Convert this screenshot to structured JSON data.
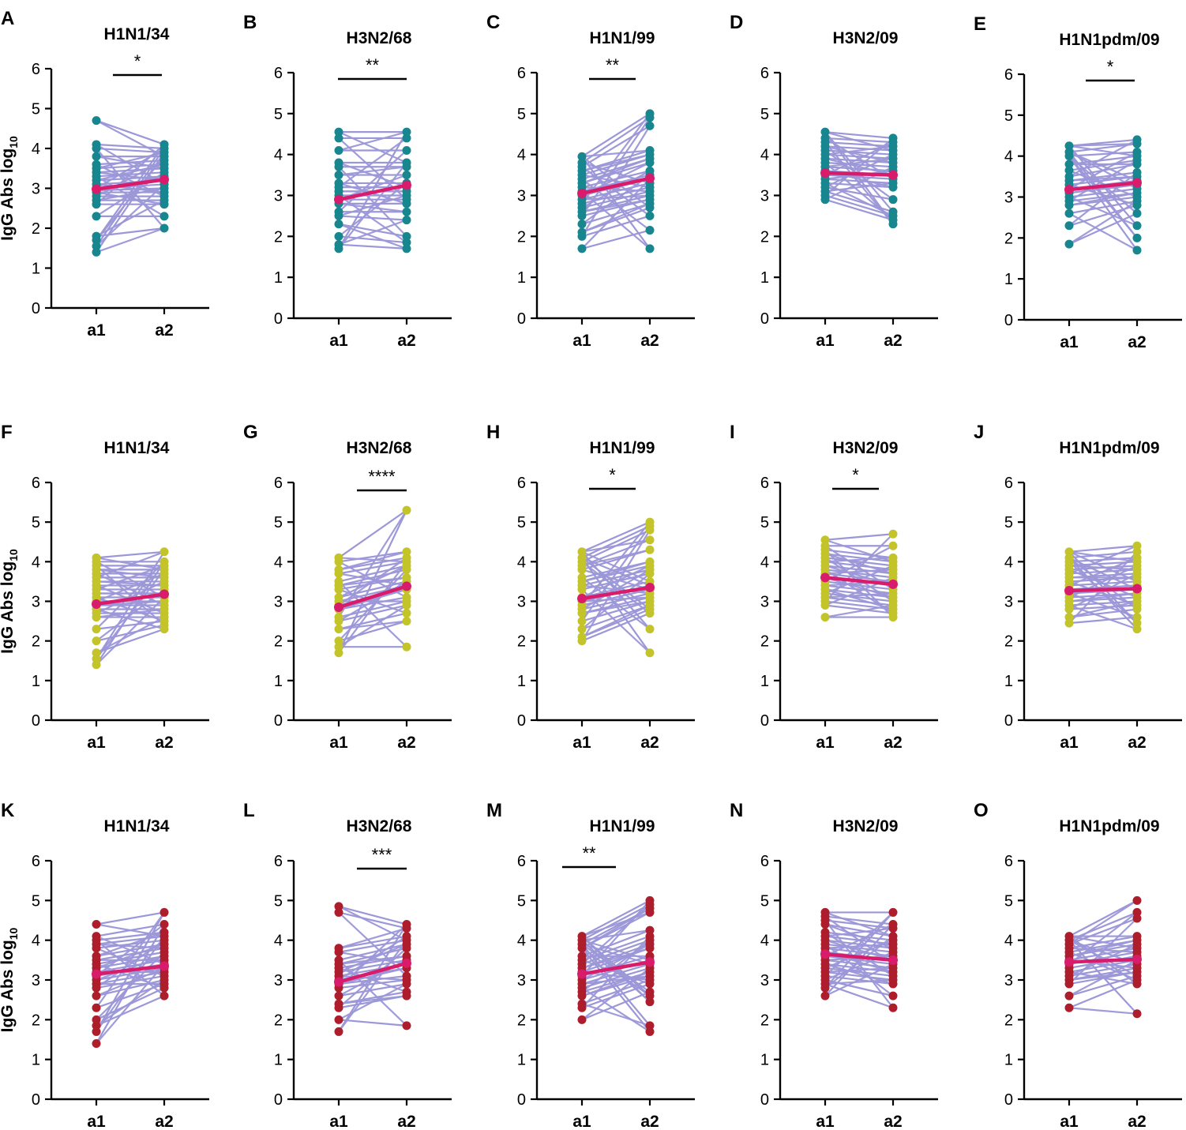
{
  "figure": {
    "ylabel_main": "IgG Abs log",
    "ylabel_sub": "10",
    "x_categories": [
      "a1",
      "a2"
    ],
    "y_ticks": [
      "0",
      "1",
      "2",
      "3",
      "4",
      "5",
      "6"
    ],
    "ylim": [
      0,
      6
    ]
  },
  "colors": {
    "line": "#9b97d8",
    "mean": "#d81b6a",
    "row_dots": [
      "#17868f",
      "#c3c32a",
      "#ad1d2c"
    ]
  },
  "chart_data": [
    {
      "label": "A",
      "title": "H1N1/34",
      "type": "line",
      "sig": "*",
      "mean": [
        2.98,
        3.22
      ],
      "a1": [
        4.7,
        4.1,
        4.0,
        3.8,
        3.6,
        3.5,
        3.4,
        3.3,
        3.2,
        3.1,
        3.0,
        2.95,
        2.9,
        2.8,
        2.7,
        2.6,
        2.3,
        1.8,
        1.7,
        1.55,
        1.4
      ],
      "a2": [
        4.1,
        4.0,
        3.9,
        3.8,
        3.7,
        3.6,
        3.5,
        3.4,
        3.3,
        3.2,
        3.1,
        3.0,
        2.9,
        2.8,
        2.7,
        2.6,
        2.3,
        2.0
      ]
    },
    {
      "label": "B",
      "title": "H3N2/68",
      "type": "line",
      "sig": "**",
      "mean": [
        2.9,
        3.25
      ],
      "a1": [
        4.55,
        4.4,
        4.1,
        3.8,
        3.7,
        3.5,
        3.3,
        3.2,
        3.1,
        3.0,
        2.9,
        2.8,
        2.6,
        2.5,
        2.3,
        2.0,
        1.8,
        1.7
      ],
      "a2": [
        4.55,
        4.4,
        4.1,
        3.8,
        3.7,
        3.5,
        3.3,
        3.2,
        3.1,
        3.0,
        2.9,
        2.8,
        2.6,
        2.4,
        2.0,
        1.85,
        1.7
      ]
    },
    {
      "label": "C",
      "title": "H1N1/99",
      "type": "line",
      "sig": "**",
      "mean": [
        3.05,
        3.42
      ],
      "a1": [
        3.95,
        3.8,
        3.7,
        3.6,
        3.5,
        3.4,
        3.3,
        3.2,
        3.1,
        3.0,
        2.9,
        2.8,
        2.7,
        2.6,
        2.5,
        2.3,
        2.1,
        2.0,
        1.7
      ],
      "a2": [
        5.0,
        4.9,
        4.7,
        4.1,
        4.0,
        3.9,
        3.8,
        3.6,
        3.5,
        3.4,
        3.3,
        3.2,
        3.1,
        3.0,
        2.9,
        2.8,
        2.7,
        2.5,
        2.15,
        1.7
      ]
    },
    {
      "label": "D",
      "title": "H3N2/09",
      "type": "line",
      "sig": "",
      "mean": [
        3.55,
        3.5
      ],
      "a1": [
        4.55,
        4.4,
        4.3,
        4.2,
        4.1,
        4.0,
        3.9,
        3.8,
        3.7,
        3.6,
        3.5,
        3.4,
        3.3,
        3.2,
        3.1,
        3.0,
        2.9
      ],
      "a2": [
        4.4,
        4.3,
        4.2,
        4.1,
        4.0,
        3.9,
        3.8,
        3.7,
        3.6,
        3.5,
        3.4,
        3.3,
        3.2,
        2.9,
        2.6,
        2.5,
        2.4,
        2.3
      ]
    },
    {
      "label": "E",
      "title": "H1N1pdm/09",
      "type": "line",
      "sig": "*",
      "mean": [
        3.18,
        3.35
      ],
      "a1": [
        4.25,
        4.1,
        4.0,
        3.8,
        3.65,
        3.5,
        3.4,
        3.3,
        3.2,
        3.1,
        3.0,
        2.9,
        2.8,
        2.6,
        2.3,
        1.85
      ],
      "a2": [
        4.4,
        4.3,
        4.1,
        4.0,
        3.9,
        3.8,
        3.6,
        3.5,
        3.4,
        3.3,
        3.2,
        3.1,
        3.0,
        2.9,
        2.8,
        2.6,
        2.3,
        2.0,
        1.7
      ]
    },
    {
      "label": "F",
      "title": "H1N1/34",
      "type": "line",
      "sig": "",
      "mean": [
        2.93,
        3.18
      ],
      "a1": [
        4.1,
        4.0,
        3.9,
        3.8,
        3.7,
        3.6,
        3.5,
        3.4,
        3.3,
        3.2,
        3.1,
        3.0,
        2.9,
        2.8,
        2.7,
        2.6,
        2.3,
        2.0,
        1.7,
        1.55,
        1.4
      ],
      "a2": [
        4.25,
        4.0,
        3.9,
        3.8,
        3.7,
        3.6,
        3.5,
        3.4,
        3.3,
        3.2,
        3.1,
        3.0,
        2.9,
        2.8,
        2.7,
        2.6,
        2.5,
        2.4,
        2.3
      ]
    },
    {
      "label": "G",
      "title": "H3N2/68",
      "type": "line",
      "sig": "****",
      "mean": [
        2.85,
        3.38
      ],
      "a1": [
        4.1,
        4.0,
        3.8,
        3.7,
        3.5,
        3.4,
        3.3,
        3.1,
        3.0,
        2.9,
        2.8,
        2.6,
        2.5,
        2.3,
        2.0,
        1.85,
        1.7
      ],
      "a2": [
        5.3,
        4.25,
        4.1,
        4.0,
        3.9,
        3.8,
        3.6,
        3.5,
        3.4,
        3.3,
        3.1,
        3.0,
        2.9,
        2.7,
        2.5,
        1.85
      ]
    },
    {
      "label": "H",
      "title": "H1N1/99",
      "type": "line",
      "sig": "*",
      "mean": [
        3.07,
        3.35
      ],
      "a1": [
        4.25,
        4.1,
        4.0,
        3.9,
        3.8,
        3.6,
        3.5,
        3.4,
        3.3,
        3.1,
        3.0,
        2.9,
        2.8,
        2.7,
        2.5,
        2.3,
        2.1,
        2.0
      ],
      "a2": [
        5.0,
        4.9,
        4.8,
        4.55,
        4.3,
        4.0,
        3.9,
        3.8,
        3.7,
        3.5,
        3.4,
        3.3,
        3.2,
        3.1,
        3.0,
        2.9,
        2.8,
        2.7,
        2.3,
        1.7
      ]
    },
    {
      "label": "I",
      "title": "H3N2/09",
      "type": "line",
      "sig": "*",
      "mean": [
        3.6,
        3.43
      ],
      "a1": [
        4.55,
        4.4,
        4.3,
        4.2,
        4.1,
        4.0,
        3.9,
        3.8,
        3.7,
        3.6,
        3.5,
        3.4,
        3.3,
        3.2,
        3.1,
        3.0,
        2.9,
        2.6
      ],
      "a2": [
        4.7,
        4.4,
        4.1,
        4.0,
        3.9,
        3.8,
        3.7,
        3.6,
        3.5,
        3.4,
        3.3,
        3.2,
        3.1,
        3.0,
        2.9,
        2.8,
        2.7,
        2.6
      ]
    },
    {
      "label": "J",
      "title": "H1N1pdm/09",
      "type": "line",
      "sig": "",
      "mean": [
        3.27,
        3.32
      ],
      "a1": [
        4.25,
        4.1,
        4.0,
        3.9,
        3.8,
        3.7,
        3.6,
        3.5,
        3.4,
        3.3,
        3.2,
        3.1,
        3.0,
        2.9,
        2.8,
        2.6,
        2.45
      ],
      "a2": [
        4.4,
        4.25,
        4.1,
        4.0,
        3.9,
        3.8,
        3.7,
        3.6,
        3.5,
        3.4,
        3.3,
        3.2,
        3.1,
        3.0,
        2.9,
        2.8,
        2.6,
        2.45,
        2.3
      ]
    },
    {
      "label": "K",
      "title": "H1N1/34",
      "type": "line",
      "sig": "",
      "mean": [
        3.15,
        3.35
      ],
      "a1": [
        4.4,
        4.1,
        4.0,
        3.9,
        3.8,
        3.6,
        3.5,
        3.4,
        3.3,
        3.2,
        3.1,
        3.0,
        2.9,
        2.8,
        2.6,
        2.3,
        2.0,
        1.85,
        1.7,
        1.4
      ],
      "a2": [
        4.7,
        4.4,
        4.2,
        4.1,
        4.0,
        3.9,
        3.8,
        3.7,
        3.6,
        3.5,
        3.4,
        3.3,
        3.2,
        3.1,
        3.0,
        2.9,
        2.8,
        2.6
      ]
    },
    {
      "label": "L",
      "title": "H3N2/68",
      "type": "line",
      "sig": "***",
      "mean": [
        2.95,
        3.42
      ],
      "a1": [
        4.85,
        4.7,
        3.8,
        3.7,
        3.5,
        3.4,
        3.3,
        3.2,
        3.1,
        3.0,
        2.9,
        2.8,
        2.6,
        2.4,
        2.3,
        2.0,
        1.7
      ],
      "a2": [
        4.4,
        4.3,
        4.1,
        4.0,
        3.9,
        3.8,
        3.6,
        3.5,
        3.4,
        3.3,
        3.1,
        3.0,
        2.9,
        2.7,
        2.6,
        1.85
      ]
    },
    {
      "label": "M",
      "title": "H1N1/99",
      "type": "line",
      "sig": "**",
      "mean": [
        3.15,
        3.45
      ],
      "a1": [
        4.1,
        4.0,
        3.9,
        3.8,
        3.6,
        3.5,
        3.4,
        3.3,
        3.2,
        3.1,
        3.0,
        2.9,
        2.8,
        2.7,
        2.6,
        2.4,
        2.3,
        2.0
      ],
      "a2": [
        5.0,
        4.9,
        4.8,
        4.7,
        4.25,
        4.1,
        4.0,
        3.9,
        3.8,
        3.6,
        3.5,
        3.4,
        3.3,
        3.2,
        3.1,
        3.0,
        2.9,
        2.7,
        2.6,
        2.45,
        1.85,
        1.7
      ]
    },
    {
      "label": "N",
      "title": "H3N2/09",
      "type": "line",
      "sig": "",
      "mean": [
        3.65,
        3.5
      ],
      "a1": [
        4.7,
        4.6,
        4.5,
        4.4,
        4.2,
        4.1,
        4.0,
        3.9,
        3.8,
        3.7,
        3.6,
        3.5,
        3.4,
        3.3,
        3.2,
        3.1,
        3.0,
        2.9,
        2.8,
        2.6
      ],
      "a2": [
        4.7,
        4.4,
        4.3,
        4.1,
        4.0,
        3.9,
        3.8,
        3.7,
        3.6,
        3.5,
        3.4,
        3.3,
        3.2,
        3.1,
        3.0,
        2.9,
        2.6,
        2.3
      ]
    },
    {
      "label": "O",
      "title": "H1N1pdm/09",
      "type": "line",
      "sig": "",
      "mean": [
        3.45,
        3.52
      ],
      "a1": [
        4.1,
        4.0,
        3.9,
        3.8,
        3.7,
        3.6,
        3.5,
        3.4,
        3.3,
        3.2,
        3.1,
        3.0,
        2.9,
        2.6,
        2.3
      ],
      "a2": [
        5.0,
        4.7,
        4.55,
        4.1,
        4.0,
        3.9,
        3.8,
        3.7,
        3.6,
        3.5,
        3.4,
        3.3,
        3.2,
        3.1,
        3.0,
        2.9,
        2.15
      ]
    }
  ]
}
